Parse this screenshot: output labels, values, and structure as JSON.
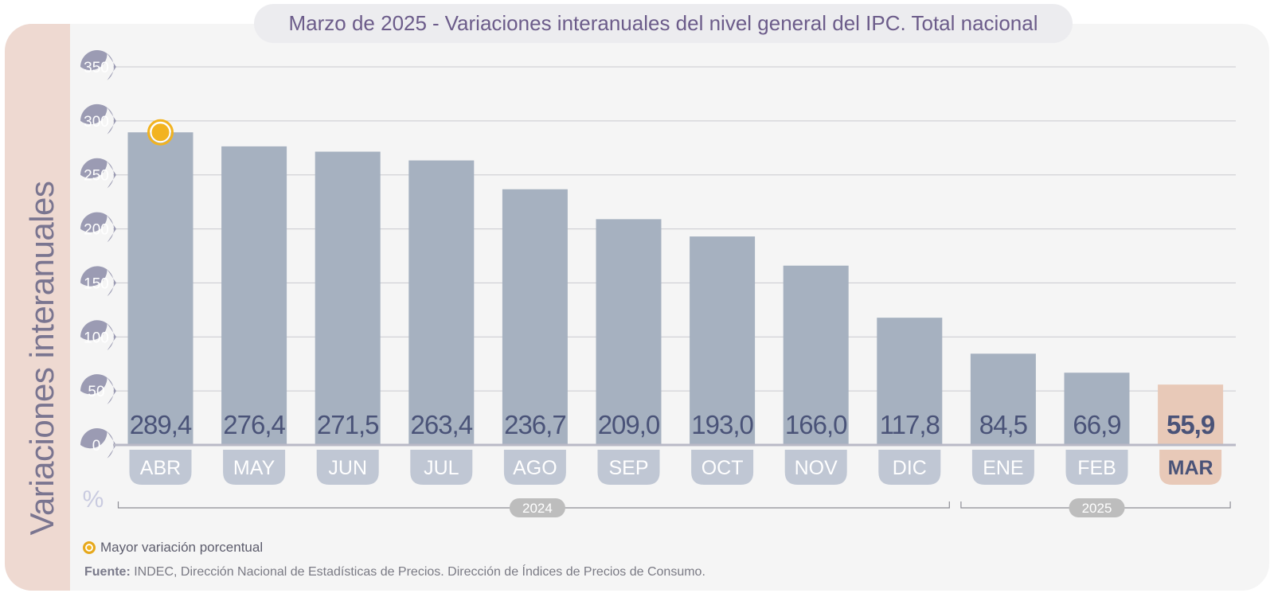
{
  "header": {
    "title_prefix": "Marzo de 2025",
    "separator": "-",
    "title_main": "Variaciones interanuales del nivel general del IPC. Total nacional"
  },
  "chart_data": {
    "type": "bar",
    "ylabel": "Variaciones interanuales",
    "unit": "%",
    "ylim": [
      0,
      350
    ],
    "yticks": [
      0,
      50,
      100,
      150,
      200,
      250,
      300,
      350
    ],
    "grid": true,
    "categories": [
      "ABR",
      "MAY",
      "JUN",
      "JUL",
      "AGO",
      "SEP",
      "OCT",
      "NOV",
      "DIC",
      "ENE",
      "FEB",
      "MAR"
    ],
    "values": [
      289.4,
      276.4,
      271.5,
      263.4,
      236.7,
      209.0,
      193.0,
      166.0,
      117.8,
      84.5,
      66.9,
      55.9
    ],
    "value_labels": [
      "289,4",
      "276,4",
      "271,5",
      "263,4",
      "236,7",
      "209,0",
      "193,0",
      "166,0",
      "117,8",
      "84,5",
      "66,9",
      "55,9"
    ],
    "highlight_category": "MAR",
    "max_marker_category": "ABR",
    "year_groups": [
      {
        "label": "2024",
        "categories": [
          "ABR",
          "MAY",
          "JUN",
          "JUL",
          "AGO",
          "SEP",
          "OCT",
          "NOV",
          "DIC"
        ]
      },
      {
        "label": "2025",
        "categories": [
          "ENE",
          "FEB",
          "MAR"
        ]
      }
    ],
    "legend": {
      "marker_label": "Mayor variación porcentual"
    },
    "colors": {
      "bar": "#a6b1c0",
      "bar_highlight": "#e8c9b8",
      "month_pill": "#c0c7d4",
      "tick_bubble": "#9b9bb3",
      "value_text": "#4a5378",
      "marker": "#f2b320",
      "year_pill": "#bdbdbd"
    }
  },
  "footer": {
    "source_label": "Fuente:",
    "source_text": "INDEC, Dirección Nacional de Estadísticas de Precios. Dirección de Índices de Precios de Consumo."
  }
}
